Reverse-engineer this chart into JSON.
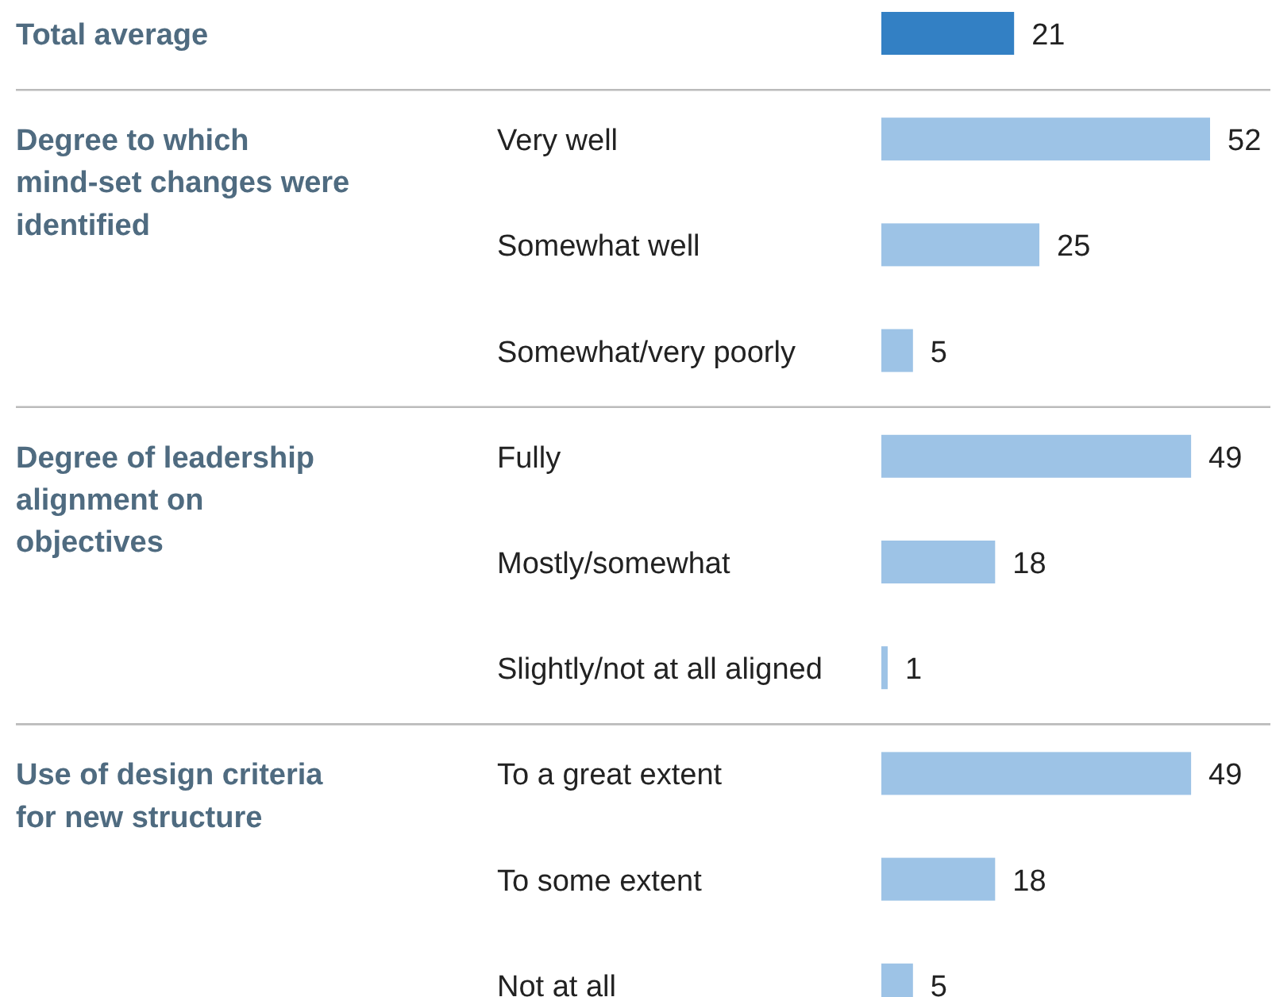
{
  "chart_data": {
    "type": "bar",
    "orientation": "horizontal",
    "categories": [
      null,
      "Very well",
      "Somewhat well",
      "Somewhat/very poorly",
      "Fully",
      "Mostly/somewhat",
      "Slightly/not at all aligned",
      "To a great extent",
      "To some extent",
      "Not at all"
    ],
    "values": [
      21,
      52,
      25,
      5,
      49,
      18,
      1,
      49,
      18,
      5
    ],
    "colors": [
      "#3380c4",
      "#9dc3e6",
      "#9dc3e6",
      "#9dc3e6",
      "#9dc3e6",
      "#9dc3e6",
      "#9dc3e6",
      "#9dc3e6",
      "#9dc3e6",
      "#9dc3e6"
    ],
    "data_labels": true,
    "annotations": [
      "Total average",
      "Degree to which mind-set changes were identified",
      "Degree of leadership alignment on objectives",
      "Use of design criteria for new structure"
    ]
  }
}
